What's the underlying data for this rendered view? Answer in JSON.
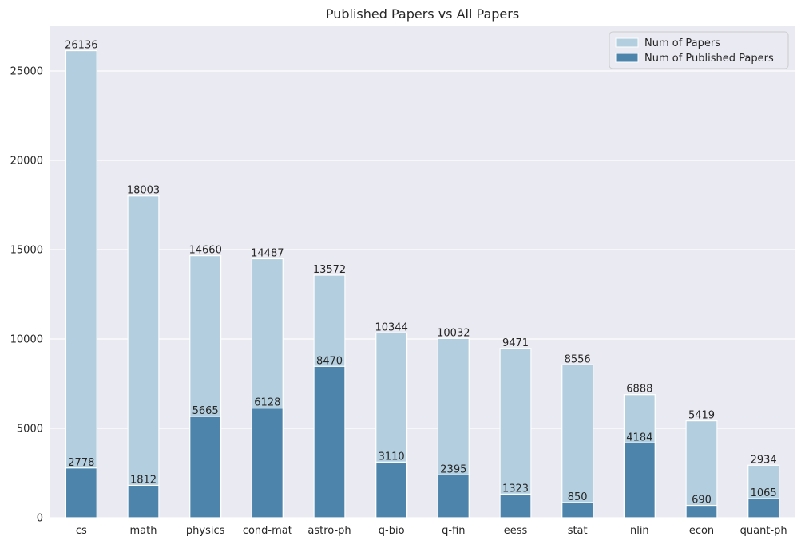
{
  "chart_data": {
    "type": "bar",
    "title": "Published Papers vs All Papers",
    "xlabel": "",
    "ylabel": "",
    "categories": [
      "cs",
      "math",
      "physics",
      "cond-mat",
      "astro-ph",
      "q-bio",
      "q-fin",
      "eess",
      "stat",
      "nlin",
      "econ",
      "quant-ph"
    ],
    "series": [
      {
        "name": "Num of Papers",
        "color": "#b3cfdf",
        "values": [
          26136,
          18003,
          14660,
          14487,
          13572,
          10344,
          10032,
          9471,
          8556,
          6888,
          5419,
          2934
        ]
      },
      {
        "name": "Num of Published Papers",
        "color": "#4c84ac",
        "values": [
          2778,
          1812,
          5665,
          6128,
          8470,
          3110,
          2395,
          1323,
          850,
          4184,
          690,
          1065
        ]
      }
    ],
    "ylim": [
      0,
      27500
    ],
    "yticks": [
      0,
      5000,
      10000,
      15000,
      20000,
      25000
    ],
    "grid": true,
    "legend_position": "top-right",
    "background_color": "#eaeaf2",
    "grid_color": "#ffffff"
  }
}
